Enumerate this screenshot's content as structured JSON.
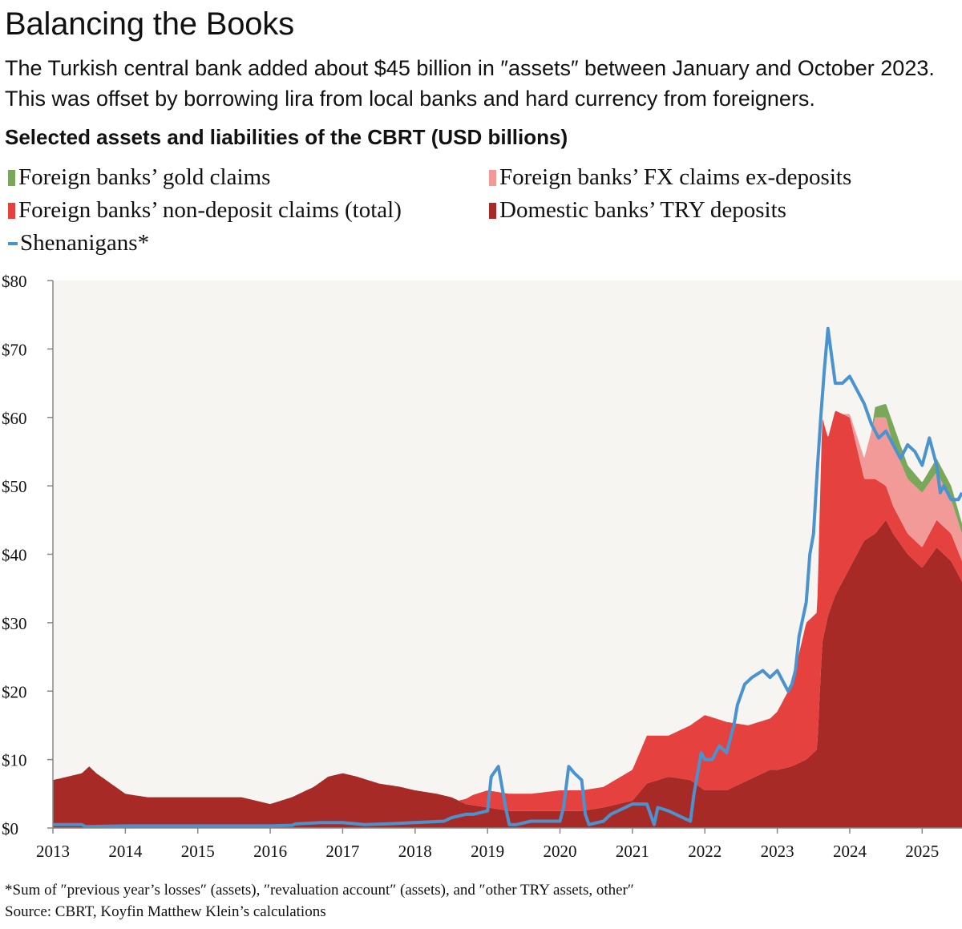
{
  "chart_data": {
    "type": "area",
    "title": "Balancing the Books",
    "subtitle": "The Turkish central bank added about $45 billion in ″assets″ between January and October 2023. This was offset by borrowing lira from local banks and hard currency from foreigners.",
    "chart_heading": "Selected assets and liabilities of the CBRT (USD billions)",
    "xlabel": "",
    "ylabel": "USD billions",
    "ylim": [
      0,
      80
    ],
    "xlim": [
      2013.0,
      2025.55
    ],
    "x_ticks": [
      "2013",
      "2014",
      "2015",
      "2016",
      "2017",
      "2018",
      "2019",
      "2020",
      "2021",
      "2022",
      "2023",
      "2024",
      "2025"
    ],
    "y_ticks": [
      "$0",
      "$10",
      "$20",
      "$30",
      "$40",
      "$50",
      "$60",
      "$70",
      "$80"
    ],
    "legend": {
      "gold": "Foreign banks’ gold claims",
      "fx": "Foreign banks’ FX claims ex-deposits",
      "nondep": "Foreign banks’ non-deposit claims (total)",
      "try_dep": "Domestic banks’ TRY deposits",
      "shen": "Shenanigans*"
    },
    "colors": {
      "gold": "#7aa75a",
      "fx": "#f29a98",
      "nondep": "#e5413e",
      "try_dep": "#a82a26",
      "shen": "#4b93cf",
      "plot_bg": "#f6f5f1",
      "axis": "#888888"
    },
    "series": [
      {
        "name": "Domestic banks’ TRY deposits",
        "key": "try_dep",
        "x": [
          2013.0,
          2013.2,
          2013.4,
          2013.5,
          2013.6,
          2013.8,
          2014.0,
          2014.3,
          2014.6,
          2015.0,
          2015.3,
          2015.6,
          2016.0,
          2016.3,
          2016.6,
          2016.8,
          2017.0,
          2017.2,
          2017.5,
          2017.8,
          2018.0,
          2018.3,
          2018.5,
          2018.7,
          2019.0,
          2019.3,
          2019.6,
          2020.0,
          2020.3,
          2020.6,
          2021.0,
          2021.2,
          2021.5,
          2021.8,
          2022.0,
          2022.3,
          2022.6,
          2022.9,
          2023.0,
          2023.2,
          2023.4,
          2023.55,
          2023.62,
          2023.7,
          2023.8,
          2024.0,
          2024.2,
          2024.35,
          2024.5,
          2024.6,
          2024.8,
          2025.0,
          2025.2,
          2025.4,
          2025.55
        ],
        "values": [
          7,
          7.5,
          8,
          9,
          8,
          6.5,
          5,
          4.5,
          4.5,
          4.5,
          4.5,
          4.5,
          3.5,
          4.5,
          6,
          7.5,
          8,
          7.5,
          6.5,
          6,
          5.5,
          5,
          4.5,
          3.5,
          3,
          2.5,
          2.5,
          2.5,
          2.5,
          3,
          4,
          6.5,
          7.5,
          7,
          5.5,
          5.5,
          7,
          8.5,
          8.5,
          9,
          10,
          11.5,
          27,
          31,
          34,
          38,
          42,
          43,
          45,
          43,
          40,
          38,
          41,
          39,
          36
        ]
      },
      {
        "name": "Foreign banks’ non-deposit claims (total)",
        "key": "nondep",
        "x": [
          2013.0,
          2018.6,
          2018.8,
          2019.0,
          2019.3,
          2019.6,
          2020.0,
          2020.3,
          2020.6,
          2021.0,
          2021.2,
          2021.5,
          2021.8,
          2022.0,
          2022.3,
          2022.6,
          2022.9,
          2023.0,
          2023.2,
          2023.4,
          2023.55,
          2023.62,
          2023.7,
          2023.8,
          2024.0,
          2024.2,
          2024.35,
          2024.5,
          2024.6,
          2024.8,
          2025.0,
          2025.2,
          2025.4,
          2025.55
        ],
        "values": [
          0,
          0,
          1.5,
          2.5,
          2.5,
          2.5,
          3,
          3,
          3,
          4.5,
          7,
          6,
          8,
          11,
          10,
          8,
          7.5,
          8.5,
          12,
          20,
          20,
          33,
          26,
          27,
          22,
          9,
          8,
          5,
          4,
          3,
          3,
          4,
          4,
          3
        ]
      },
      {
        "name": "Foreign banks’ FX claims ex-deposits",
        "key": "fx",
        "x": [
          2013.0,
          2023.9,
          2024.0,
          2024.2,
          2024.35,
          2024.5,
          2024.6,
          2024.8,
          2025.0,
          2025.2,
          2025.4,
          2025.55
        ],
        "values": [
          0,
          0,
          0.5,
          3,
          9,
          10,
          9,
          8,
          8,
          7,
          5,
          4
        ]
      },
      {
        "name": "Foreign banks’ gold claims",
        "key": "gold",
        "x": [
          2013.0,
          2024.3,
          2024.35,
          2024.5,
          2024.6,
          2024.8,
          2025.0,
          2025.2,
          2025.4,
          2025.55
        ],
        "values": [
          0,
          0,
          1.5,
          2,
          3,
          2,
          1.5,
          2,
          2,
          1.5
        ]
      },
      {
        "name": "Shenanigans*",
        "key": "shen",
        "x": [
          2013.0,
          2013.4,
          2013.45,
          2014.0,
          2014.3,
          2015.0,
          2015.3,
          2015.35,
          2016.0,
          2016.3,
          2016.35,
          2016.7,
          2017.0,
          2017.3,
          2017.6,
          2018.0,
          2018.4,
          2018.5,
          2018.7,
          2018.8,
          2019.0,
          2019.05,
          2019.15,
          2019.25,
          2019.3,
          2019.4,
          2019.6,
          2019.8,
          2020.0,
          2020.05,
          2020.12,
          2020.2,
          2020.3,
          2020.35,
          2020.4,
          2020.6,
          2020.7,
          2020.9,
          2021.0,
          2021.2,
          2021.3,
          2021.35,
          2021.5,
          2021.8,
          2021.85,
          2021.95,
          2022.0,
          2022.1,
          2022.2,
          2022.3,
          2022.4,
          2022.45,
          2022.55,
          2022.65,
          2022.8,
          2022.9,
          2023.0,
          2023.05,
          2023.15,
          2023.2,
          2023.25,
          2023.3,
          2023.4,
          2023.45,
          2023.5,
          2023.55,
          2023.6,
          2023.65,
          2023.7,
          2023.8,
          2023.9,
          2024.0,
          2024.1,
          2024.2,
          2024.3,
          2024.4,
          2024.5,
          2024.6,
          2024.7,
          2024.8,
          2024.9,
          2025.0,
          2025.1,
          2025.2,
          2025.25,
          2025.3,
          2025.4,
          2025.5,
          2025.55
        ],
        "values": [
          0.5,
          0.5,
          0.2,
          0.3,
          0.3,
          0.3,
          0.3,
          0.3,
          0.3,
          0.4,
          0.6,
          0.8,
          0.8,
          0.5,
          0.6,
          0.8,
          1,
          1.5,
          2,
          2,
          2.5,
          7.5,
          9,
          3,
          0.5,
          0.5,
          1,
          1,
          1,
          3,
          9,
          8,
          7,
          2,
          0.5,
          1,
          2,
          3,
          3.5,
          3.5,
          0.5,
          3,
          2.5,
          1,
          5,
          11,
          10,
          10,
          12,
          11,
          15,
          18,
          21,
          22,
          23,
          22,
          23,
          22,
          20,
          21,
          23,
          28,
          33,
          40,
          43,
          52,
          60,
          67,
          73,
          65,
          65,
          66,
          64,
          62,
          59,
          57,
          58,
          56,
          54,
          56,
          55,
          53,
          57,
          53,
          49,
          50,
          48,
          48,
          49
        ]
      }
    ]
  },
  "footnote": "*Sum of ″previous year’s losses″ (assets), ″revaluation account″ (assets), and ″other TRY assets, other″",
  "source": "Source: CBRT, Koyfin Matthew Klein’s calculations"
}
